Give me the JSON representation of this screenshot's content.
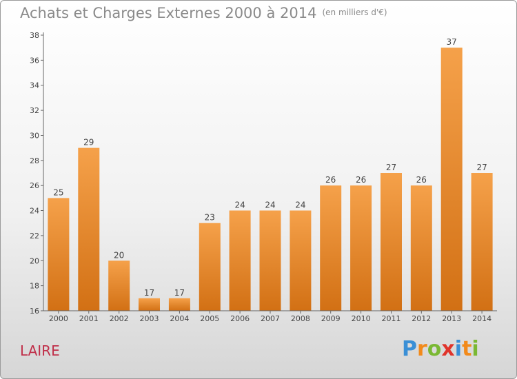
{
  "chart_data": {
    "type": "bar",
    "title": "Achats et Charges Externes 2000 à 2014",
    "subtitle": "(en milliers d'€)",
    "xlabel": "",
    "ylabel": "",
    "categories": [
      "2000",
      "2001",
      "2002",
      "2003",
      "2004",
      "2005",
      "2006",
      "2007",
      "2008",
      "2009",
      "2010",
      "2011",
      "2012",
      "2013",
      "2014"
    ],
    "values": [
      25,
      29,
      20,
      17,
      17,
      23,
      24,
      24,
      24,
      26,
      26,
      27,
      26,
      37,
      27
    ],
    "ylim": [
      16,
      38
    ],
    "yticks": [
      16,
      18,
      20,
      22,
      24,
      26,
      28,
      30,
      32,
      34,
      36,
      38
    ],
    "grid": false,
    "legend": "none",
    "bar_color_top": "#f5a14a",
    "bar_color_bottom": "#d27014"
  },
  "footer": {
    "commune": "LAIRE",
    "logo_letters": [
      {
        "ch": "P",
        "color": "#3a8fd6"
      },
      {
        "ch": "r",
        "color": "#f28a1b"
      },
      {
        "ch": "o",
        "color": "#7ab833"
      },
      {
        "ch": "x",
        "color": "#e0342b"
      },
      {
        "ch": "i",
        "color": "#3a8fd6"
      },
      {
        "ch": "t",
        "color": "#f28a1b"
      },
      {
        "ch": "i",
        "color": "#7ab833"
      }
    ]
  }
}
